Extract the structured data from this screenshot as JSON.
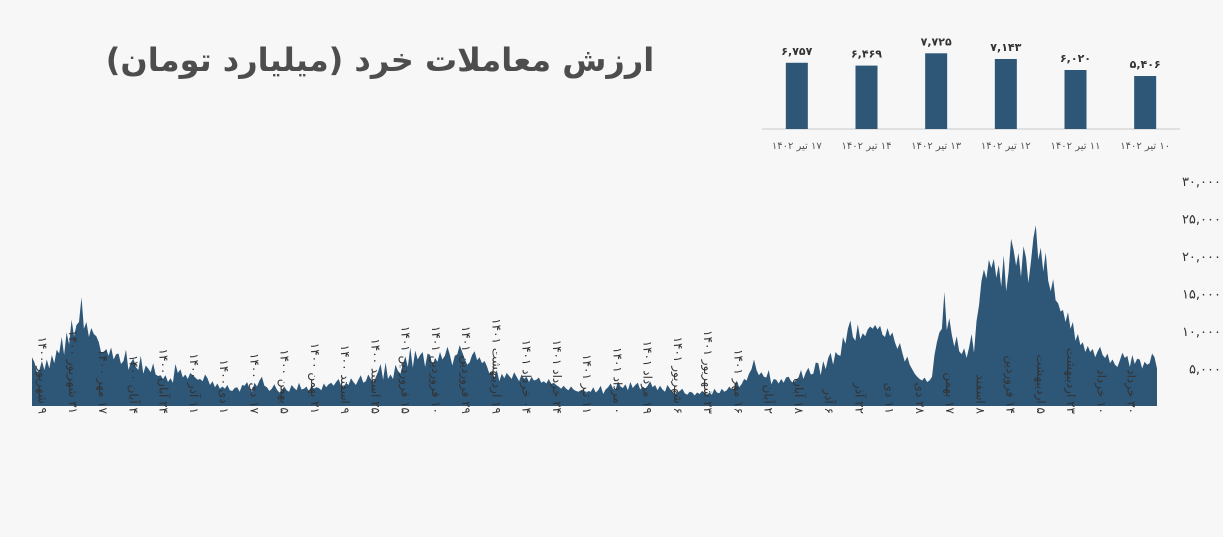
{
  "title": "ارزش معاملات خرد (میلیارد تومان)",
  "colors": {
    "series": "#2d5677",
    "background": "#f7f7f7",
    "title": "#4d4d4d"
  },
  "chart_data": [
    {
      "type": "bar",
      "categories": [
        "۱۰ تیر ۱۴۰۲",
        "۱۱ تیر ۱۴۰۲",
        "۱۲ تیر ۱۴۰۲",
        "۱۳ تیر ۱۴۰۲",
        "۱۴ تیر ۱۴۰۲",
        "۱۷ تیر ۱۴۰۲"
      ],
      "values": [
        5406,
        6020,
        7143,
        7725,
        6469,
        6757
      ],
      "value_labels": [
        "۵,۴۰۶",
        "۶,۰۲۰",
        "۷,۱۴۳",
        "۷,۷۲۵",
        "۶,۴۶۹",
        "۶,۷۵۷"
      ],
      "ylim": [
        0,
        8000
      ]
    },
    {
      "type": "area",
      "ylim": [
        0,
        30000
      ],
      "yticks": [
        5000,
        10000,
        15000,
        20000,
        25000,
        30000
      ],
      "ytick_labels": [
        "۵,۰۰۰",
        "۱۰,۰۰۰",
        "۱۵,۰۰۰",
        "۲۰,۰۰۰",
        "۲۵,۰۰۰",
        "۳۰,۰۰۰"
      ],
      "grid": false,
      "x_labels": [
        "۹ شهریور ۱۴۰۰",
        "۳۱ شهریور ۱۴۰۰",
        "۱۷ مهر ۱۴۰۰",
        "۴ آبان ۱۴۰۰",
        "۲۴ آبان ۱۴۰۰",
        "۱۱ آذر ۱۴۰۰",
        "۱ دی ۱۴۰۰",
        "۱۷ دی ۱۴۰۰",
        "۵ بهمن ۱۴۰۰",
        "۲۱ بهمن ۱۴۰۰",
        "۹ اسفند ۱۴۰۰",
        "۲۵ اسفند ۱۴۰۰",
        "۱۵ فروردین ۱۴۰۱",
        "۱۰ فروردین ۱۴۰۱",
        "۲۹ فروردین ۱۴۰۱",
        "۱۹ اردیبهشت ۱۴۰۱",
        "۰۴ خرداد ۱۴۰۱",
        "۲۴ خرداد ۱۴۰۱",
        "۱۱ تیر ۱۴۰۱",
        "۰ مرداد ۱۴۰۱",
        "۱۹ مرداد ۱۴۰۱",
        "۶ شهریور ۱۴۰۱",
        "۲۳ شهریور ۱۴۰۱",
        "۱۶ مهر ۱۴۰۱",
        "۲ آبان",
        "۱۸ آبان",
        "۶ آذر",
        "۲۲ آذر",
        "۱۱ دی",
        "۲۸ دی",
        "۱۷ بهمن",
        "۸ اسفند",
        "۱۴ فروردین",
        "۵ اردیبهشت",
        "۲۳ اردیبهشت",
        "۱۰ خرداد",
        "۳۰ خرداد"
      ],
      "values": [
        6500,
        5800,
        4500,
        4800,
        6000,
        4800,
        6200,
        5000,
        6800,
        5700,
        7500,
        7000,
        9200,
        6800,
        9800,
        8200,
        11500,
        9300,
        10800,
        11200,
        14500,
        10300,
        11200,
        9200,
        10400,
        9600,
        9300,
        8500,
        7100,
        7200,
        7600,
        6700,
        7800,
        6200,
        6900,
        7000,
        5600,
        6000,
        7500,
        4800,
        5800,
        6300,
        5200,
        4800,
        6700,
        4300,
        5400,
        5000,
        4500,
        5700,
        4200,
        4000,
        4100,
        3600,
        4100,
        3200,
        3700,
        3100,
        5600,
        4400,
        4900,
        3800,
        4200,
        3600,
        4400,
        4100,
        3800,
        3500,
        3600,
        3300,
        4200,
        3700,
        2800,
        3300,
        2500,
        3000,
        2300,
        2600,
        2300,
        2800,
        2100,
        2000,
        2400,
        2500,
        1900,
        2800,
        2700,
        3200,
        2300,
        1900,
        3100,
        2600,
        3400,
        3900,
        2700,
        2500,
        2000,
        2300,
        2900,
        2200,
        1800,
        2000,
        2600,
        2100,
        1900,
        2800,
        2400,
        2100,
        3100,
        2200,
        2300,
        2600,
        1900,
        2700,
        2300,
        2500,
        2400,
        2100,
        3000,
        2500,
        2900,
        3100,
        2700,
        3200,
        3600,
        2700,
        2500,
        3100,
        2800,
        3700,
        3200,
        2800,
        3500,
        4100,
        3100,
        3300,
        4200,
        3600,
        3100,
        3800,
        4600,
        5600,
        3500,
        5800,
        3600,
        4200,
        3600,
        5500,
        4700,
        4300,
        5600,
        6600,
        5200,
        7800,
        5100,
        7400,
        6200,
        6800,
        7200,
        5200,
        7000,
        6800,
        5300,
        6400,
        5900,
        7200,
        6200,
        6700,
        7900,
        6800,
        5400,
        6700,
        6900,
        8100,
        7200,
        6300,
        5500,
        5800,
        6800,
        7300,
        6100,
        6500,
        5700,
        6000,
        5300,
        4300,
        4600,
        3800,
        4800,
        3300,
        4300,
        3700,
        4400,
        4000,
        3600,
        4500,
        3900,
        3300,
        4200,
        3600,
        3900,
        3200,
        3900,
        3400,
        3500,
        3800,
        3100,
        3300,
        3000,
        3600,
        2900,
        3100,
        2800,
        2600,
        2300,
        2700,
        2300,
        2100,
        2600,
        2200,
        2000,
        1900,
        2100,
        2200,
        1700,
        2000,
        1900,
        2500,
        1800,
        2100,
        2700,
        1600,
        2200,
        2500,
        3000,
        2300,
        2100,
        3300,
        2600,
        2400,
        2900,
        2100,
        3200,
        2400,
        2800,
        3100,
        2200,
        2600,
        2300,
        2700,
        3300,
        2500,
        2800,
        2100,
        2700,
        2200,
        1900,
        2800,
        2300,
        1900,
        1600,
        1800,
        2000,
        2300,
        1700,
        1500,
        1900,
        1800,
        1400,
        1800,
        1600,
        2000,
        1800,
        1500,
        1800,
        1500,
        2300,
        1800,
        1700,
        2300,
        1900,
        2100,
        2600,
        2200,
        2300,
        3400,
        2500,
        2900,
        3600,
        3400,
        4300,
        4900,
        6200,
        4800,
        4100,
        4500,
        3900,
        3800,
        4800,
        2900,
        3600,
        3500,
        3000,
        3600,
        3100,
        3800,
        3900,
        3300,
        3100,
        3500,
        3800,
        4800,
        3600,
        4500,
        5100,
        4200,
        4300,
        5800,
        5700,
        4100,
        6000,
        4900,
        6400,
        7100,
        5500,
        7200,
        6800,
        6700,
        9200,
        8300,
        10300,
        11400,
        9200,
        8700,
        10900,
        8900,
        9700,
        9300,
        10200,
        10600,
        10300,
        10800,
        10200,
        10700,
        9500,
        9200,
        10400,
        9300,
        9800,
        8500,
        7600,
        8400,
        7100,
        5900,
        6600,
        5500,
        4900,
        4300,
        3900,
        3600,
        3400,
        3800,
        3200,
        3400,
        3900,
        6800,
        8500,
        9800,
        10300,
        15200,
        10100,
        11700,
        9500,
        7900,
        9300,
        7300,
        6900,
        7700,
        6400,
        7800,
        9600,
        7100,
        11300,
        13400,
        16700,
        18200,
        17000,
        19500,
        18400,
        19600,
        17100,
        18800,
        15900,
        20100,
        15300,
        17900,
        22300,
        20800,
        18700,
        20400,
        17200,
        21300,
        19800,
        16400,
        19200,
        22400,
        24100,
        19500,
        21100,
        17900,
        20500,
        16700,
        15300,
        16900,
        14100,
        13700,
        12600,
        12800,
        11200,
        12500,
        10300,
        11200,
        8700,
        9600,
        8100,
        8500,
        7200,
        8000,
        7200,
        7600,
        6500,
        7300,
        7900,
        6800,
        6400,
        7000,
        5700,
        6200,
        5500,
        5200,
        6100,
        7100,
        6400,
        6700,
        5200,
        6800,
        5600,
        6300,
        6200,
        5000,
        5900,
        5500,
        5700,
        7000,
        6500,
        5000
      ]
    }
  ]
}
